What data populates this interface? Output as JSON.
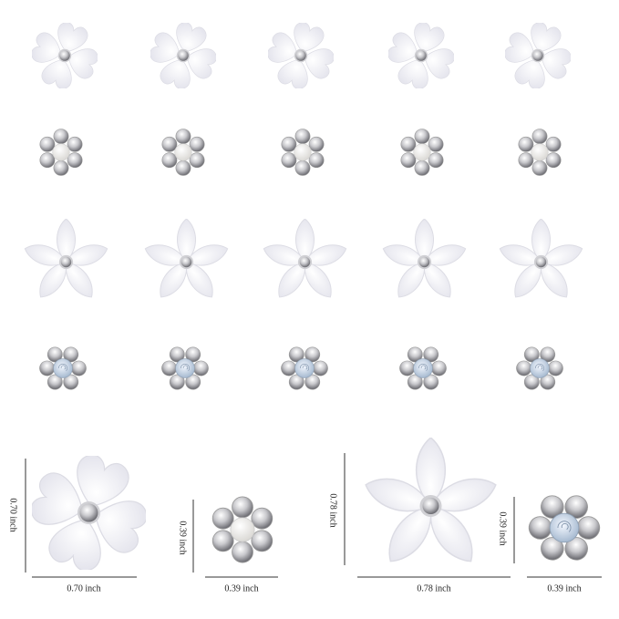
{
  "dimensions": [
    {
      "width_label": "0.70 inch",
      "height_label": "0.70 inch"
    },
    {
      "width_label": "0.39 inch",
      "height_label": "0.39 inch"
    },
    {
      "width_label": "0.78 inch",
      "height_label": "0.78 inch"
    },
    {
      "width_label": "0.39 inch",
      "height_label": "0.39 inch"
    }
  ]
}
